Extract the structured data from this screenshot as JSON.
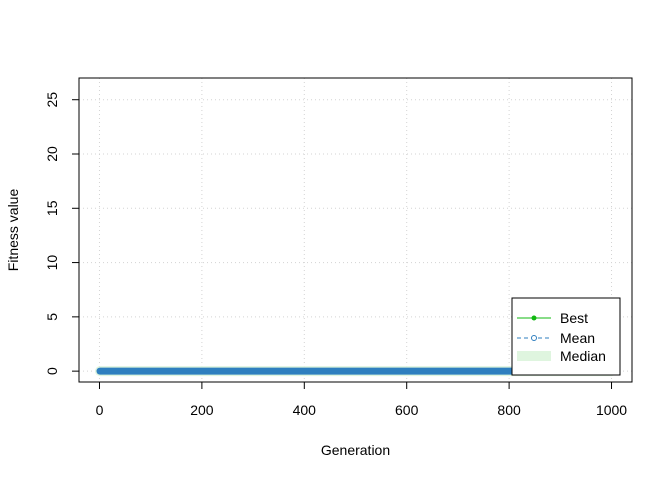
{
  "chart_data": {
    "type": "line",
    "title": "",
    "xlabel": "Generation",
    "ylabel": "Fitness value",
    "xlim": [
      -40,
      1040
    ],
    "ylim": [
      -1,
      27
    ],
    "x_ticks": [
      0,
      200,
      400,
      600,
      800,
      1000
    ],
    "y_ticks": [
      0,
      5,
      10,
      15,
      20,
      25
    ],
    "grid": true,
    "legend_position": "bottom-right",
    "generations": [
      1,
      1000
    ],
    "series": [
      {
        "name": "Best",
        "color": "#11b811",
        "marker": "filled-circle",
        "line": "solid",
        "constant_value": 0
      },
      {
        "name": "Mean",
        "color": "#2f7fbf",
        "marker": "open-circle",
        "line": "dashed",
        "constant_value": 0
      },
      {
        "name": "Median",
        "color": "#dff5df",
        "marker": "none",
        "line": "band",
        "constant_value": 0
      }
    ]
  }
}
